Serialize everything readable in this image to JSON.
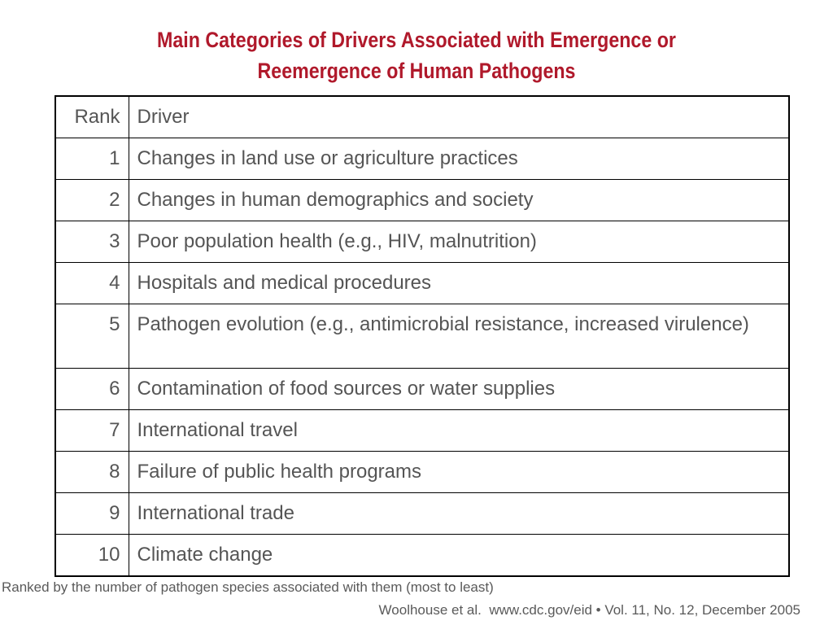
{
  "title": {
    "line1": "Main Categories of Drivers Associated with Emergence or",
    "line2": "Reemergence of Human Pathogens"
  },
  "table": {
    "headers": {
      "rank": "Rank",
      "driver": "Driver"
    },
    "rows": [
      {
        "rank": "1",
        "driver": "Changes in land use or agriculture practices"
      },
      {
        "rank": "2",
        "driver": "Changes in human demographics and society"
      },
      {
        "rank": "3",
        "driver": "Poor population health (e.g., HIV, malnutrition)"
      },
      {
        "rank": "4",
        "driver": "Hospitals and medical procedures"
      },
      {
        "rank": "5",
        "driver": "Pathogen evolution (e.g., antimicrobial resistance, increased virulence)"
      },
      {
        "rank": "6",
        "driver": "Contamination of food sources or water supplies"
      },
      {
        "rank": "7",
        "driver": "International travel"
      },
      {
        "rank": "8",
        "driver": "Failure of public health programs"
      },
      {
        "rank": "9",
        "driver": "International trade"
      },
      {
        "rank": "10",
        "driver": "Climate change"
      }
    ]
  },
  "footnote": "Ranked by the number of pathogen species associated with them (most to least)",
  "citation": "Woolhouse et al.  www.cdc.gov/eid • Vol. 11, No. 12, December 2005",
  "colors": {
    "title": "#b0192b",
    "text": "#555555",
    "border": "#000000"
  }
}
